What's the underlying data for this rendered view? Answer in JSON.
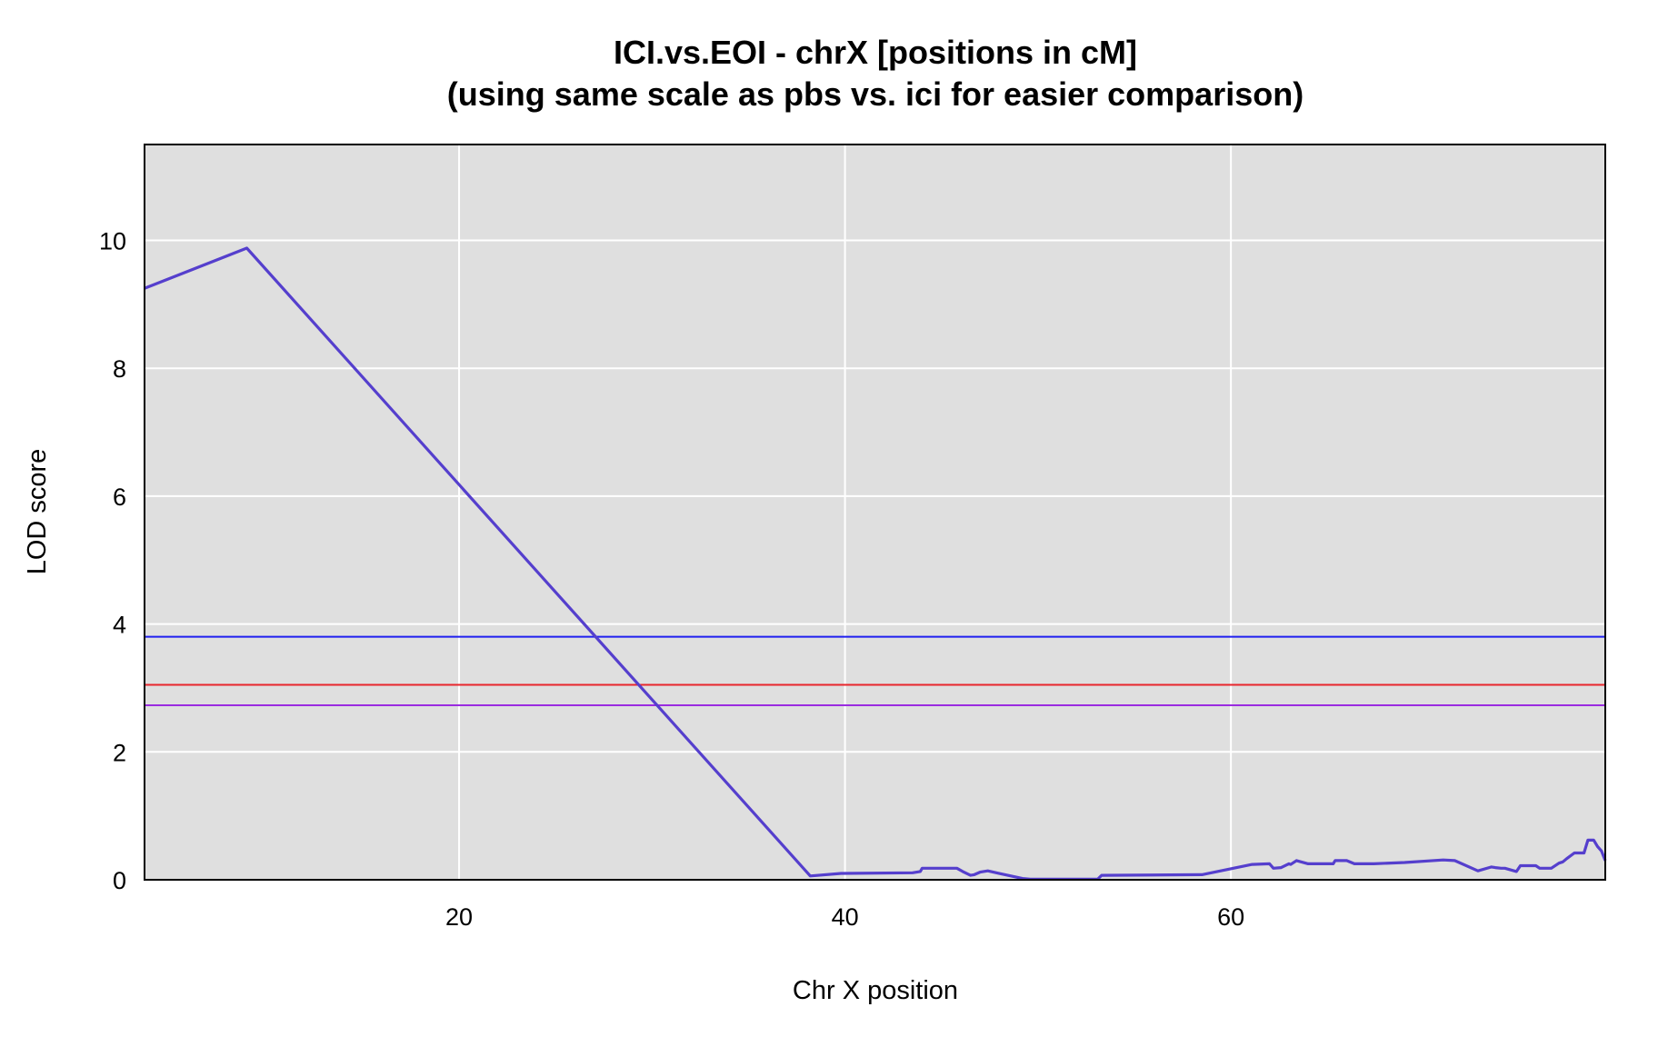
{
  "chart_data": {
    "type": "line",
    "title": "ICI.vs.EOI - chrX [positions in cM]",
    "subtitle": "(using same scale as pbs  vs. ici for easier comparison)",
    "xlabel": "Chr X position",
    "ylabel": "LOD score",
    "xlim": [
      3.7,
      79.4
    ],
    "ylim": [
      0,
      11.5
    ],
    "x_ticks": [
      20,
      40,
      60
    ],
    "y_ticks": [
      0,
      2,
      4,
      6,
      8,
      10
    ],
    "grid": true,
    "background": "#dfdfdf",
    "thresholds": [
      {
        "value": 3.8,
        "color": "#1f1fef"
      },
      {
        "value": 3.05,
        "color": "#e8262c"
      },
      {
        "value": 2.73,
        "color": "#9a2ce0"
      }
    ],
    "series": [
      {
        "color": "#553fcd",
        "x": [
          3.7,
          9.0,
          38.2,
          39.8,
          39.9,
          43.5,
          43.9,
          44.0,
          45.8,
          46.1,
          46.5,
          46.7,
          47.0,
          47.4,
          48.0,
          49.2,
          49.6,
          53.1,
          53.3,
          58.5,
          61.1,
          62.0,
          62.2,
          62.6,
          63.0,
          63.1,
          63.4,
          64.0,
          65.3,
          65.4,
          66.0,
          66.4,
          66.8,
          67.4,
          69.0,
          71.0,
          71.6,
          72.8,
          73.5,
          73.7,
          74.0,
          74.2,
          74.8,
          75.0,
          75.8,
          76.0,
          76.6,
          77.0,
          77.2,
          77.4,
          77.8,
          78.3,
          78.5,
          78.8,
          79.0,
          79.2,
          79.4
        ],
        "y": [
          9.25,
          9.88,
          0.06,
          0.1,
          0.1,
          0.11,
          0.13,
          0.18,
          0.18,
          0.13,
          0.07,
          0.08,
          0.12,
          0.14,
          0.1,
          0.02,
          0.01,
          0.01,
          0.07,
          0.08,
          0.24,
          0.25,
          0.18,
          0.19,
          0.25,
          0.24,
          0.3,
          0.25,
          0.25,
          0.3,
          0.3,
          0.25,
          0.25,
          0.25,
          0.27,
          0.31,
          0.3,
          0.14,
          0.2,
          0.19,
          0.18,
          0.18,
          0.13,
          0.22,
          0.22,
          0.18,
          0.18,
          0.26,
          0.28,
          0.33,
          0.42,
          0.42,
          0.62,
          0.62,
          0.52,
          0.45,
          0.3
        ]
      }
    ]
  }
}
